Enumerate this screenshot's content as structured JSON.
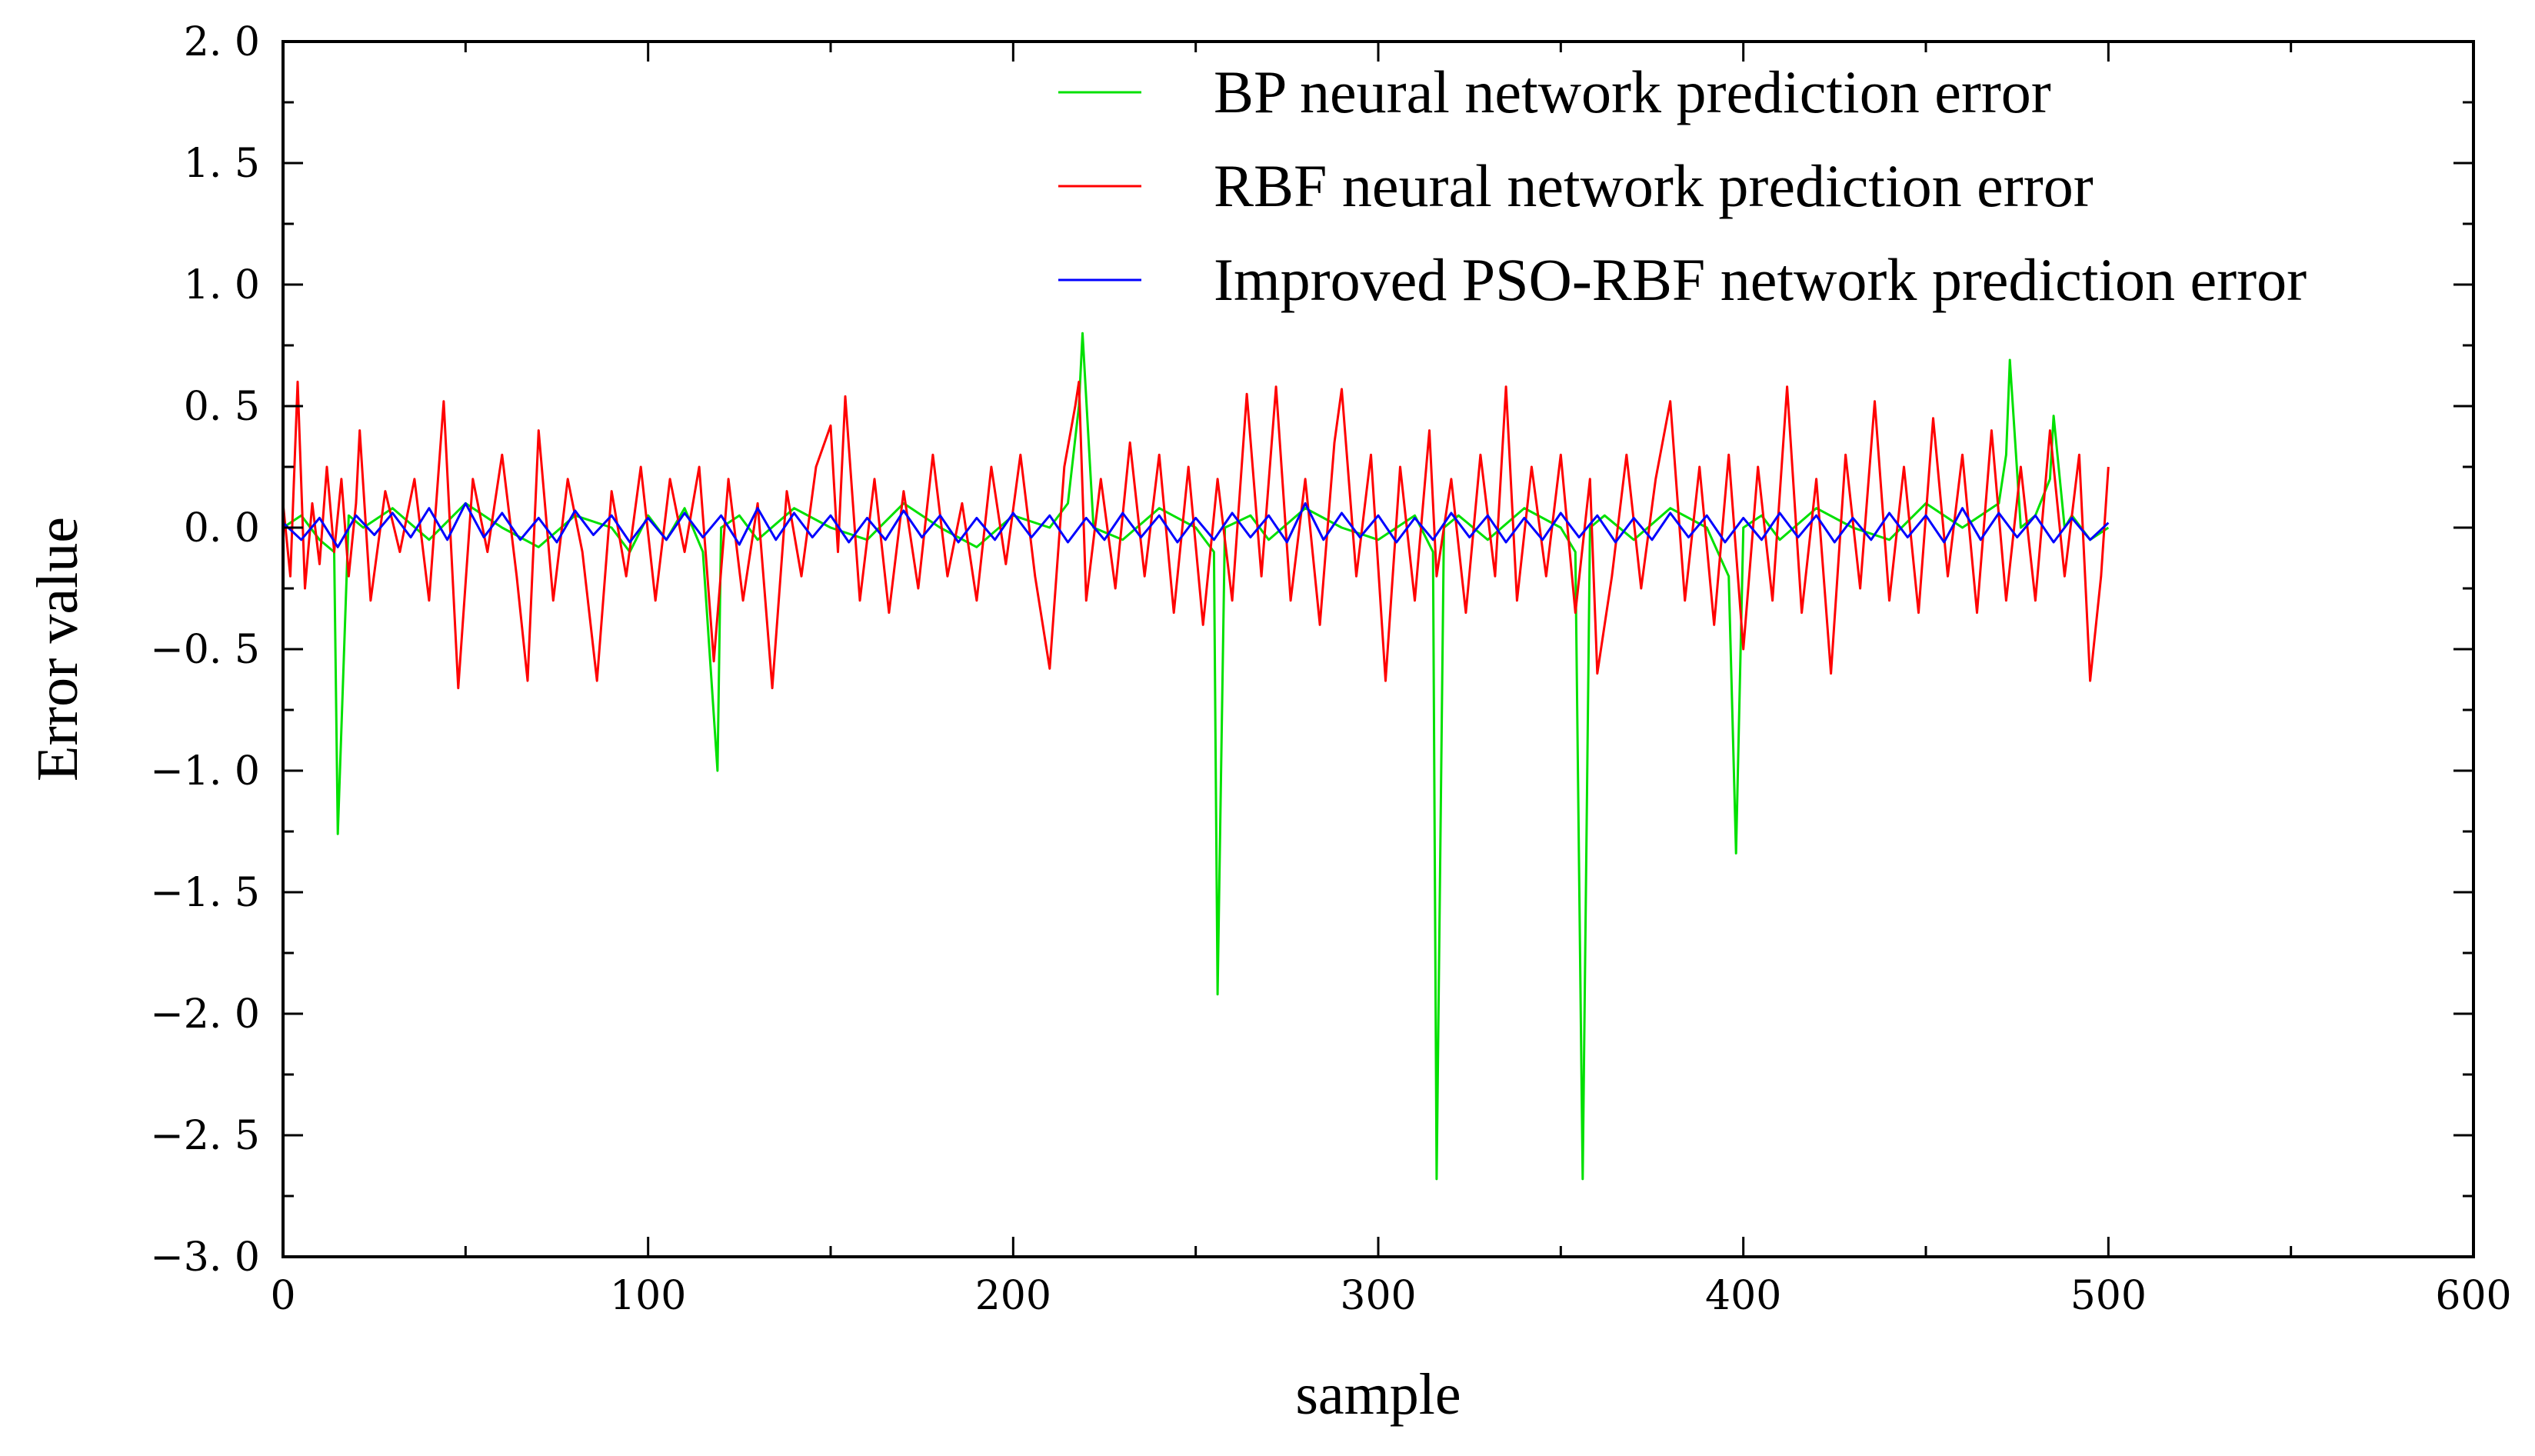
{
  "chart_data": {
    "type": "line",
    "title": "",
    "xlabel": "sample",
    "ylabel": "Error value",
    "xlim": [
      0,
      600
    ],
    "ylim": [
      -3.0,
      2.0
    ],
    "x_ticks": [
      0,
      100,
      200,
      300,
      400,
      500,
      600
    ],
    "x_tick_labels": [
      "0",
      "100",
      "200",
      "300",
      "400",
      "500",
      "600"
    ],
    "y_ticks": [
      2.0,
      1.5,
      1.0,
      0.5,
      0.0,
      -0.5,
      -1.0,
      -1.5,
      -2.0,
      -2.5,
      -3.0
    ],
    "y_tick_labels": [
      "2. 0",
      "1. 5",
      "1. 0",
      "0. 5",
      "0. 0",
      "−0. 5",
      "−1. 0",
      "−1. 5",
      "−2. 0",
      "−2. 5",
      "−3. 0"
    ],
    "grid": false,
    "legend_position": "top-right",
    "series": [
      {
        "name": "BP neural network prediction error",
        "color": "#00e000",
        "x": [
          0,
          5,
          10,
          14,
          15,
          18,
          22,
          30,
          40,
          50,
          60,
          70,
          80,
          90,
          95,
          100,
          105,
          110,
          115,
          119,
          120,
          125,
          130,
          140,
          150,
          160,
          170,
          180,
          190,
          200,
          210,
          215,
          218,
          219,
          222,
          230,
          240,
          250,
          255,
          256,
          258,
          265,
          270,
          280,
          290,
          300,
          310,
          315,
          316,
          318,
          322,
          330,
          340,
          350,
          354,
          356,
          358,
          362,
          370,
          380,
          390,
          396,
          398,
          400,
          405,
          410,
          420,
          430,
          440,
          450,
          460,
          470,
          472,
          473,
          476,
          480,
          484,
          485,
          488,
          490,
          495,
          500
        ],
        "values": [
          0.0,
          0.05,
          -0.05,
          -0.1,
          -1.26,
          0.05,
          0.0,
          0.08,
          -0.05,
          0.1,
          0.0,
          -0.08,
          0.05,
          0.0,
          -0.1,
          0.05,
          -0.05,
          0.08,
          -0.1,
          -1.0,
          0.0,
          0.05,
          -0.05,
          0.08,
          0.0,
          -0.05,
          0.1,
          0.0,
          -0.08,
          0.05,
          0.0,
          0.1,
          0.5,
          0.8,
          0.0,
          -0.05,
          0.08,
          0.0,
          -0.1,
          -1.92,
          0.0,
          0.05,
          -0.05,
          0.08,
          0.0,
          -0.05,
          0.05,
          -0.1,
          -2.68,
          0.0,
          0.05,
          -0.05,
          0.08,
          0.0,
          -0.1,
          -2.68,
          0.0,
          0.05,
          -0.05,
          0.08,
          0.0,
          -0.2,
          -1.34,
          0.0,
          0.05,
          -0.05,
          0.08,
          0.0,
          -0.05,
          0.1,
          0.0,
          0.1,
          0.3,
          0.69,
          0.0,
          0.05,
          0.2,
          0.46,
          0.0,
          0.05,
          -0.05,
          0.0
        ]
      },
      {
        "name": "RBF neural network prediction error",
        "color": "#ff0000",
        "x": [
          0,
          2,
          4,
          6,
          8,
          10,
          12,
          14,
          16,
          18,
          20,
          21,
          24,
          28,
          32,
          36,
          40,
          44,
          48,
          52,
          56,
          60,
          64,
          67,
          70,
          74,
          78,
          82,
          86,
          90,
          94,
          98,
          102,
          106,
          110,
          114,
          118,
          122,
          126,
          130,
          134,
          138,
          142,
          146,
          150,
          152,
          154,
          158,
          162,
          166,
          170,
          174,
          178,
          182,
          186,
          190,
          194,
          198,
          202,
          206,
          210,
          214,
          217,
          218,
          220,
          224,
          228,
          232,
          236,
          240,
          244,
          248,
          252,
          256,
          260,
          264,
          268,
          272,
          276,
          280,
          284,
          288,
          290,
          294,
          298,
          302,
          306,
          310,
          314,
          316,
          320,
          324,
          328,
          332,
          335,
          338,
          342,
          346,
          350,
          354,
          358,
          360,
          364,
          368,
          372,
          376,
          380,
          384,
          388,
          392,
          396,
          400,
          404,
          408,
          412,
          416,
          420,
          424,
          428,
          432,
          436,
          440,
          444,
          448,
          452,
          456,
          460,
          464,
          468,
          472,
          476,
          480,
          484,
          488,
          492,
          495,
          498,
          500
        ],
        "values": [
          0.1,
          -0.2,
          0.6,
          -0.25,
          0.1,
          -0.15,
          0.25,
          -0.1,
          0.2,
          -0.2,
          0.1,
          0.4,
          -0.3,
          0.15,
          -0.1,
          0.2,
          -0.3,
          0.52,
          -0.66,
          0.2,
          -0.1,
          0.3,
          -0.2,
          -0.63,
          0.4,
          -0.3,
          0.2,
          -0.1,
          -0.63,
          0.15,
          -0.2,
          0.25,
          -0.3,
          0.2,
          -0.1,
          0.25,
          -0.55,
          0.2,
          -0.3,
          0.1,
          -0.66,
          0.15,
          -0.2,
          0.25,
          0.42,
          -0.1,
          0.54,
          -0.3,
          0.2,
          -0.35,
          0.15,
          -0.25,
          0.3,
          -0.2,
          0.1,
          -0.3,
          0.25,
          -0.15,
          0.3,
          -0.2,
          -0.58,
          0.25,
          0.5,
          0.6,
          -0.3,
          0.2,
          -0.25,
          0.35,
          -0.2,
          0.3,
          -0.35,
          0.25,
          -0.4,
          0.2,
          -0.3,
          0.55,
          -0.2,
          0.58,
          -0.3,
          0.2,
          -0.4,
          0.35,
          0.57,
          -0.2,
          0.3,
          -0.63,
          0.25,
          -0.3,
          0.4,
          -0.2,
          0.2,
          -0.35,
          0.3,
          -0.2,
          0.58,
          -0.3,
          0.25,
          -0.2,
          0.3,
          -0.35,
          0.2,
          -0.6,
          -0.2,
          0.3,
          -0.25,
          0.2,
          0.52,
          -0.3,
          0.25,
          -0.4,
          0.3,
          -0.5,
          0.25,
          -0.3,
          0.58,
          -0.35,
          0.2,
          -0.6,
          0.3,
          -0.25,
          0.52,
          -0.3,
          0.25,
          -0.35,
          0.45,
          -0.2,
          0.3,
          -0.35,
          0.4,
          -0.3,
          0.25,
          -0.3,
          0.4,
          -0.2,
          0.3,
          -0.63,
          -0.2,
          0.25
        ]
      },
      {
        "name": "Improved PSO-RBF network prediction error",
        "color": "#0000ff",
        "x": [
          0,
          5,
          10,
          15,
          20,
          25,
          30,
          35,
          40,
          45,
          50,
          55,
          60,
          65,
          70,
          75,
          80,
          85,
          90,
          95,
          100,
          105,
          110,
          115,
          120,
          125,
          130,
          135,
          140,
          145,
          150,
          155,
          160,
          165,
          170,
          175,
          180,
          185,
          190,
          195,
          200,
          205,
          210,
          215,
          220,
          225,
          230,
          235,
          240,
          245,
          250,
          255,
          260,
          265,
          270,
          275,
          280,
          285,
          290,
          295,
          300,
          305,
          310,
          315,
          320,
          325,
          330,
          335,
          340,
          345,
          350,
          355,
          360,
          365,
          370,
          375,
          380,
          385,
          390,
          395,
          400,
          405,
          410,
          415,
          420,
          425,
          430,
          435,
          440,
          445,
          450,
          455,
          460,
          465,
          470,
          475,
          480,
          485,
          490,
          495,
          500
        ],
        "values": [
          0.02,
          -0.05,
          0.04,
          -0.08,
          0.05,
          -0.03,
          0.06,
          -0.04,
          0.08,
          -0.05,
          0.1,
          -0.04,
          0.06,
          -0.05,
          0.04,
          -0.06,
          0.07,
          -0.03,
          0.05,
          -0.06,
          0.04,
          -0.05,
          0.06,
          -0.04,
          0.05,
          -0.07,
          0.08,
          -0.05,
          0.06,
          -0.04,
          0.05,
          -0.06,
          0.04,
          -0.05,
          0.07,
          -0.04,
          0.05,
          -0.06,
          0.04,
          -0.05,
          0.06,
          -0.04,
          0.05,
          -0.06,
          0.04,
          -0.05,
          0.06,
          -0.04,
          0.05,
          -0.06,
          0.04,
          -0.05,
          0.06,
          -0.04,
          0.05,
          -0.06,
          0.1,
          -0.05,
          0.06,
          -0.04,
          0.05,
          -0.06,
          0.04,
          -0.05,
          0.06,
          -0.04,
          0.05,
          -0.06,
          0.04,
          -0.05,
          0.06,
          -0.04,
          0.05,
          -0.06,
          0.04,
          -0.05,
          0.06,
          -0.04,
          0.05,
          -0.06,
          0.04,
          -0.05,
          0.06,
          -0.04,
          0.05,
          -0.06,
          0.04,
          -0.05,
          0.06,
          -0.04,
          0.05,
          -0.06,
          0.08,
          -0.05,
          0.06,
          -0.04,
          0.05,
          -0.06,
          0.04,
          -0.05,
          0.02
        ]
      }
    ]
  }
}
